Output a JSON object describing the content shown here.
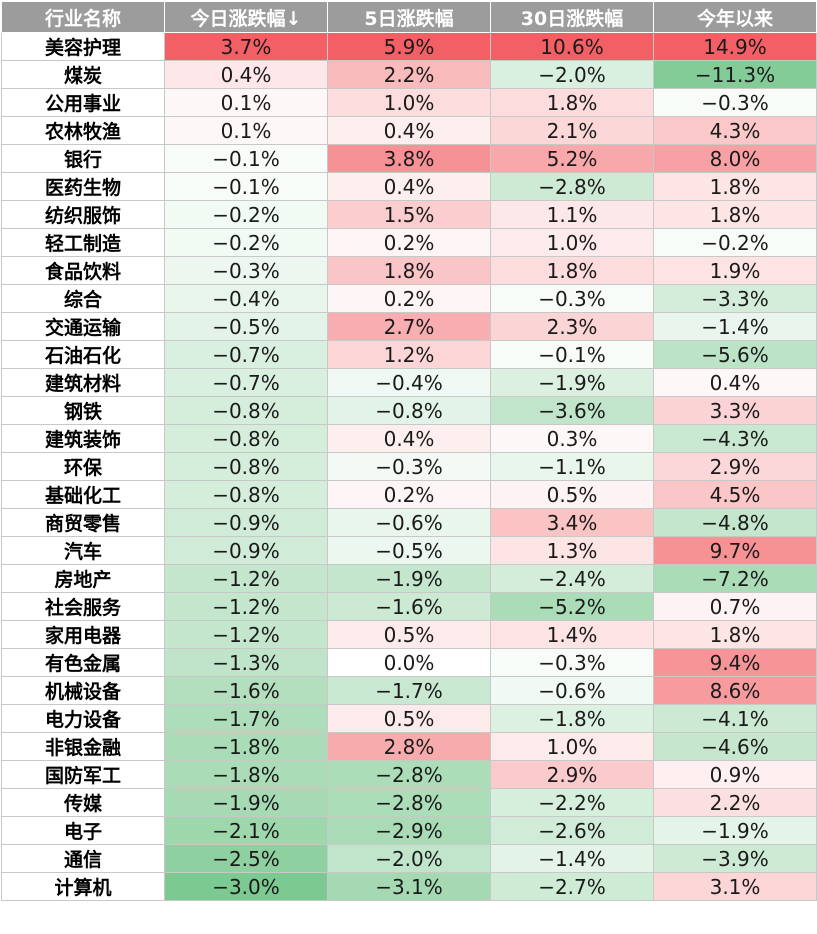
{
  "colors": {
    "header_bg": "#9c9c9c",
    "header_text": "#ffffff",
    "positive": "#f26065",
    "negative": "#63be7b",
    "neutral": "#ffffff"
  },
  "chart_data": {
    "type": "table",
    "title": "",
    "row_header": "行业名称",
    "columns": [
      "今日涨跌幅↓",
      "5日涨跌幅",
      "30日涨跌幅",
      "今年以来"
    ],
    "unit": "%",
    "rows": [
      {
        "name": "美容护理",
        "values": [
          3.7,
          5.9,
          10.6,
          14.9
        ]
      },
      {
        "name": "煤炭",
        "values": [
          0.4,
          2.2,
          -2.0,
          -11.3
        ]
      },
      {
        "name": "公用事业",
        "values": [
          0.1,
          1.0,
          1.8,
          -0.3
        ]
      },
      {
        "name": "农林牧渔",
        "values": [
          0.1,
          0.4,
          2.1,
          4.3
        ]
      },
      {
        "name": "银行",
        "values": [
          -0.1,
          3.8,
          5.2,
          8.0
        ]
      },
      {
        "name": "医药生物",
        "values": [
          -0.1,
          0.4,
          -2.8,
          1.8
        ]
      },
      {
        "name": "纺织服饰",
        "values": [
          -0.2,
          1.5,
          1.1,
          1.8
        ]
      },
      {
        "name": "轻工制造",
        "values": [
          -0.2,
          0.2,
          1.0,
          -0.2
        ]
      },
      {
        "name": "食品饮料",
        "values": [
          -0.3,
          1.8,
          1.8,
          1.9
        ]
      },
      {
        "name": "综合",
        "values": [
          -0.4,
          0.2,
          -0.3,
          -3.3
        ]
      },
      {
        "name": "交通运输",
        "values": [
          -0.5,
          2.7,
          2.3,
          -1.4
        ]
      },
      {
        "name": "石油石化",
        "values": [
          -0.7,
          1.2,
          -0.1,
          -5.6
        ]
      },
      {
        "name": "建筑材料",
        "values": [
          -0.7,
          -0.4,
          -1.9,
          0.4
        ]
      },
      {
        "name": "钢铁",
        "values": [
          -0.8,
          -0.8,
          -3.6,
          3.3
        ]
      },
      {
        "name": "建筑装饰",
        "values": [
          -0.8,
          0.4,
          0.3,
          -4.3
        ]
      },
      {
        "name": "环保",
        "values": [
          -0.8,
          -0.3,
          -1.1,
          2.9
        ]
      },
      {
        "name": "基础化工",
        "values": [
          -0.8,
          0.2,
          0.5,
          4.5
        ]
      },
      {
        "name": "商贸零售",
        "values": [
          -0.9,
          -0.6,
          3.4,
          -4.8
        ]
      },
      {
        "name": "汽车",
        "values": [
          -0.9,
          -0.5,
          1.3,
          9.7
        ]
      },
      {
        "name": "房地产",
        "values": [
          -1.2,
          -1.9,
          -2.4,
          -7.2
        ]
      },
      {
        "name": "社会服务",
        "values": [
          -1.2,
          -1.6,
          -5.2,
          0.7
        ]
      },
      {
        "name": "家用电器",
        "values": [
          -1.2,
          0.5,
          1.4,
          1.8
        ]
      },
      {
        "name": "有色金属",
        "values": [
          -1.3,
          0.0,
          -0.3,
          9.4
        ]
      },
      {
        "name": "机械设备",
        "values": [
          -1.6,
          -1.7,
          -0.6,
          8.6
        ]
      },
      {
        "name": "电力设备",
        "values": [
          -1.7,
          0.5,
          -1.8,
          -4.1
        ]
      },
      {
        "name": "非银金融",
        "values": [
          -1.8,
          2.8,
          1.0,
          -4.6
        ]
      },
      {
        "name": "国防军工",
        "values": [
          -1.8,
          -2.8,
          2.9,
          0.9
        ]
      },
      {
        "name": "传媒",
        "values": [
          -1.9,
          -2.8,
          -2.2,
          2.2
        ]
      },
      {
        "name": "电子",
        "values": [
          -2.1,
          -2.9,
          -2.6,
          -1.9
        ]
      },
      {
        "name": "通信",
        "values": [
          -2.5,
          -2.0,
          -1.4,
          -3.9
        ]
      },
      {
        "name": "计算机",
        "values": [
          -3.0,
          -3.1,
          -2.7,
          3.1
        ]
      }
    ]
  }
}
